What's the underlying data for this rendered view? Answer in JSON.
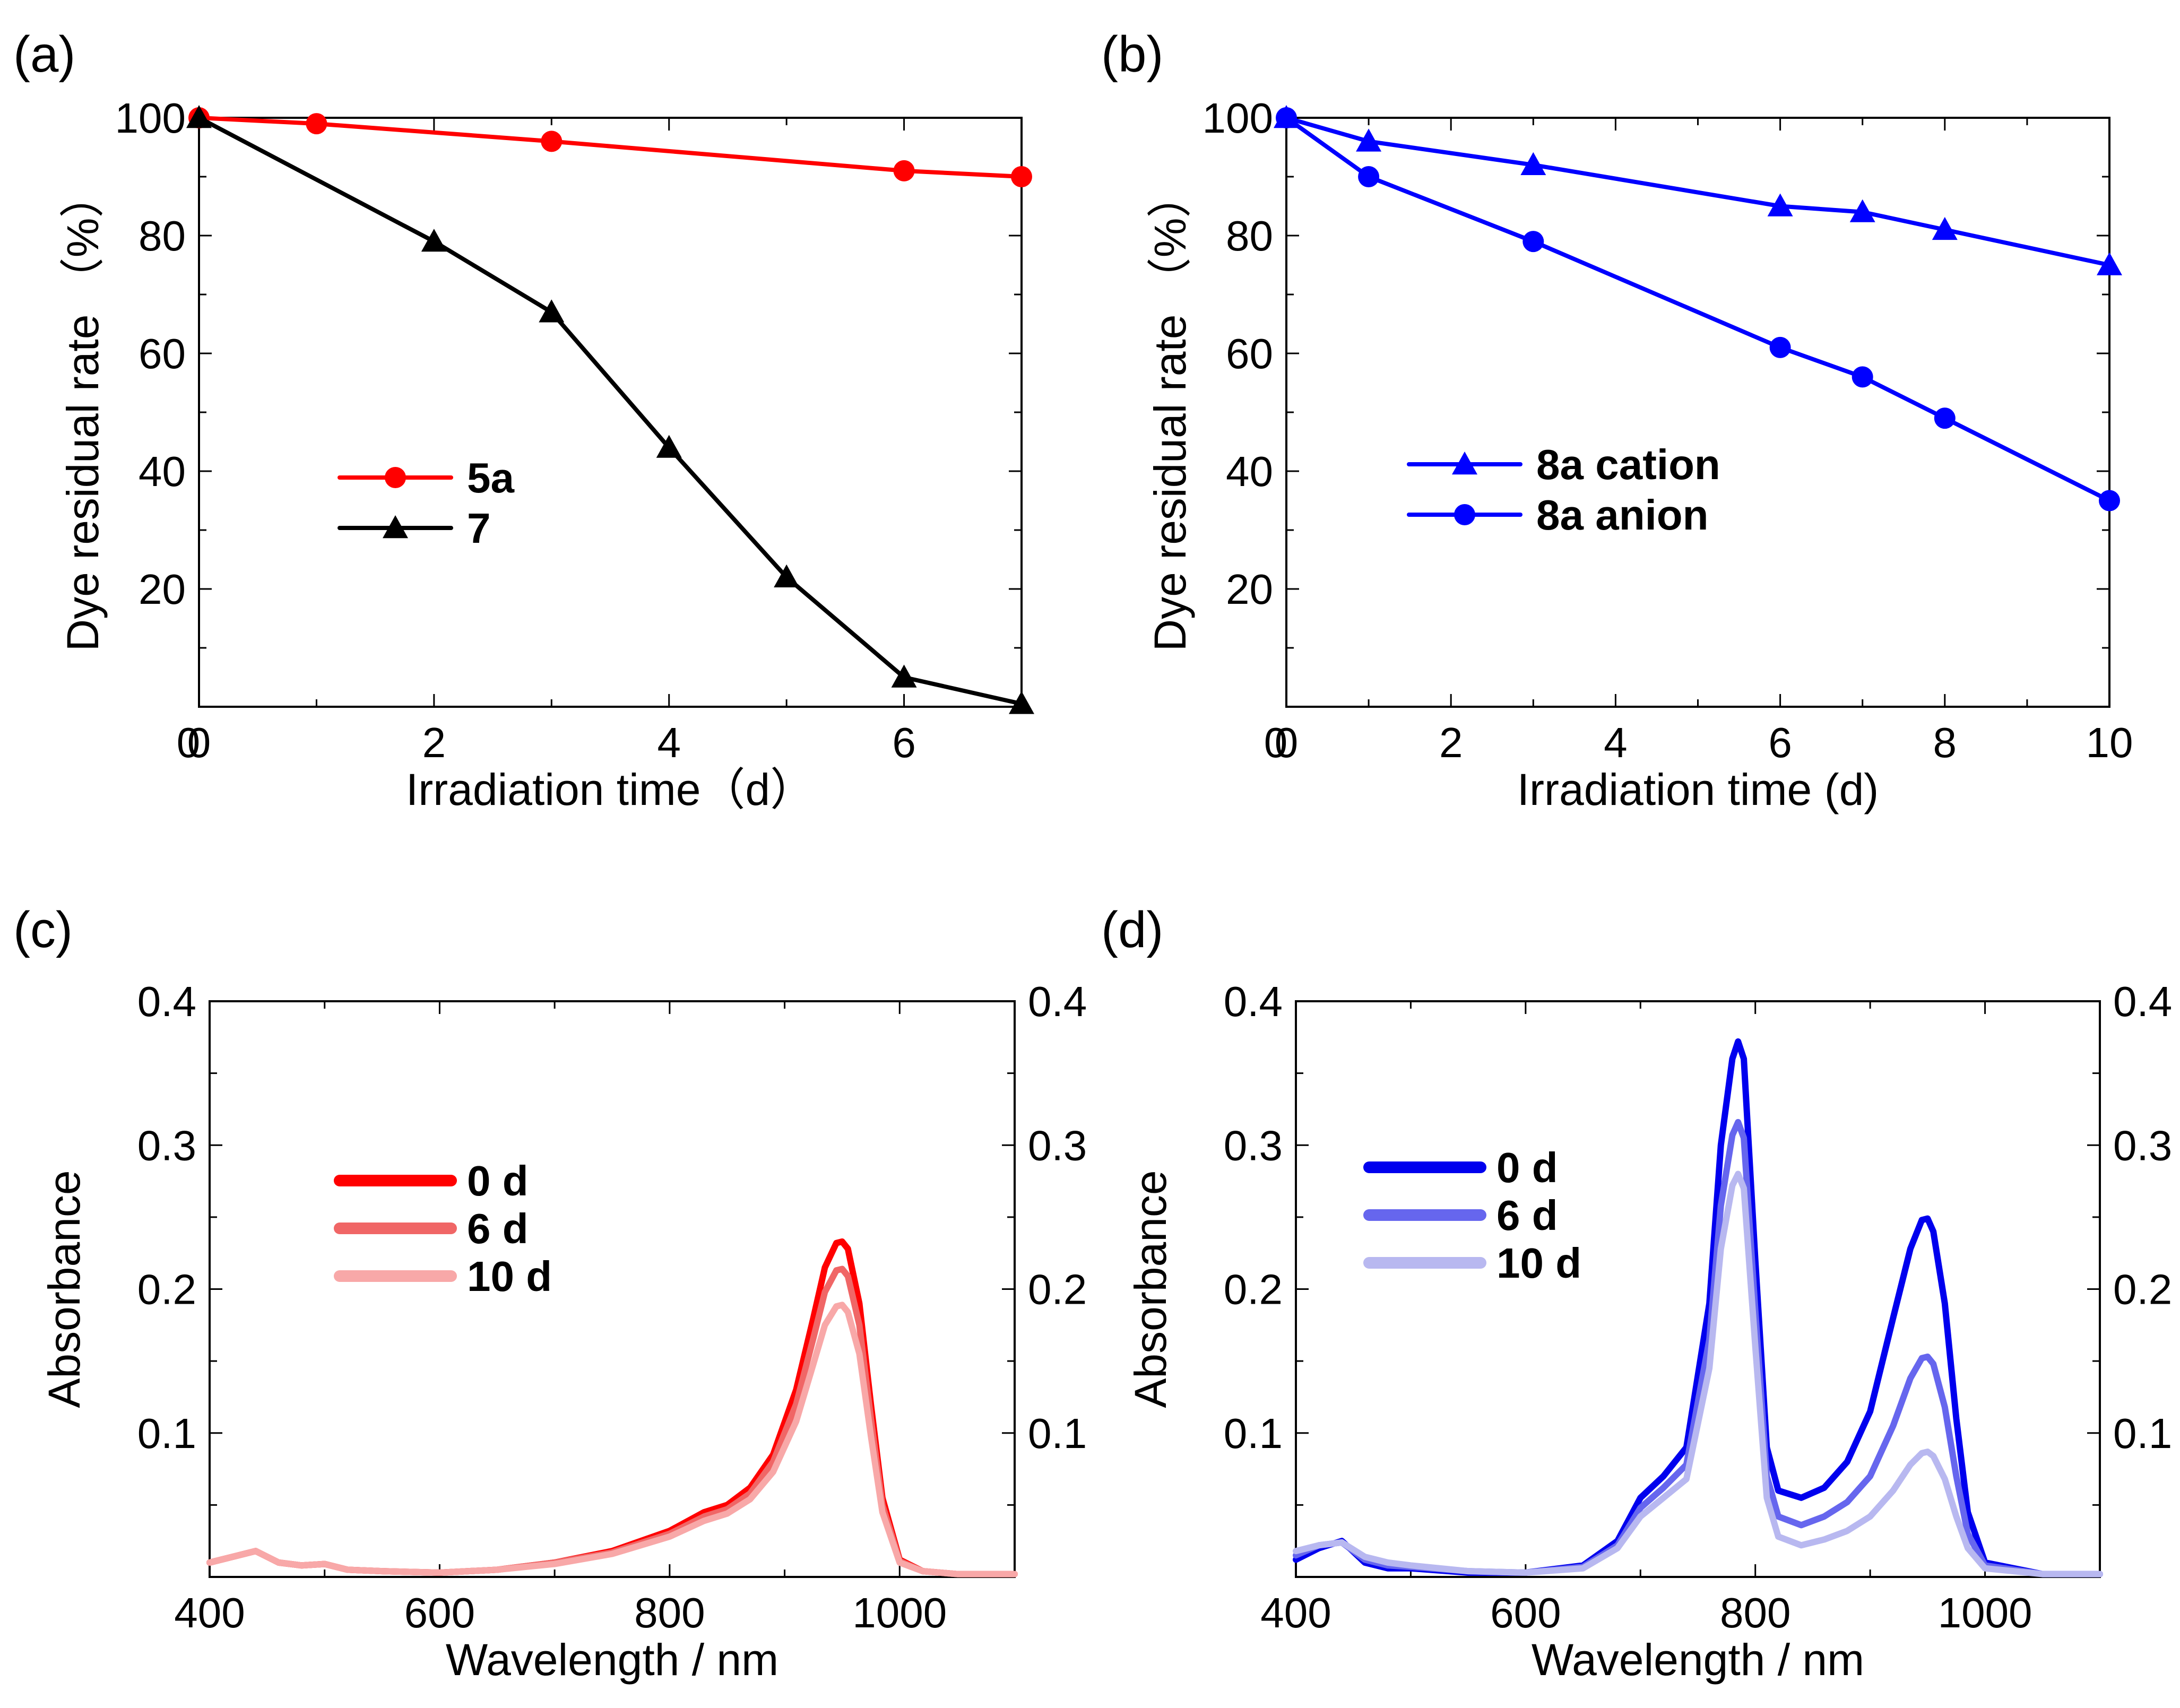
{
  "chart_data": [
    {
      "panel_label": "(a)",
      "type": "line",
      "xlabel": "Irradiation time（d）",
      "ylabel": "Dye residual rate （%）",
      "xlim": [
        0,
        7
      ],
      "ylim": [
        0,
        100
      ],
      "xticks": [
        0,
        2,
        4,
        6
      ],
      "yticks": [
        20,
        40,
        60,
        80,
        100
      ],
      "legend_position": "middle-left",
      "series": [
        {
          "name": "5a",
          "marker": "circle",
          "color": "#ff0000",
          "x": [
            0,
            1,
            3,
            6,
            7
          ],
          "y": [
            100,
            99,
            96,
            91,
            90
          ]
        },
        {
          "name": "7",
          "marker": "triangle",
          "color": "#000000",
          "x": [
            0,
            2,
            3,
            4,
            5,
            6,
            7
          ],
          "y": [
            100,
            79,
            67,
            44,
            22,
            5,
            0.5
          ]
        }
      ]
    },
    {
      "panel_label": "(b)",
      "type": "line",
      "xlabel": "Irradiation time (d)",
      "ylabel": "Dye residual rate （%）",
      "xlim": [
        0,
        10
      ],
      "ylim": [
        0,
        100
      ],
      "xticks": [
        0,
        2,
        4,
        6,
        8,
        10
      ],
      "yticks": [
        20,
        40,
        60,
        80,
        100
      ],
      "legend_position": "middle-left",
      "series": [
        {
          "name": "8a cation",
          "marker": "triangle",
          "color": "#0000ff",
          "x": [
            0,
            1,
            3,
            6,
            7,
            8,
            10
          ],
          "y": [
            100,
            96,
            92,
            85,
            84,
            81,
            75
          ]
        },
        {
          "name": "8a anion",
          "marker": "circle",
          "color": "#0000ff",
          "x": [
            0,
            1,
            3,
            6,
            7,
            8,
            10
          ],
          "y": [
            100,
            90,
            79,
            61,
            56,
            49,
            35
          ]
        }
      ]
    },
    {
      "panel_label": "(c)",
      "type": "line",
      "xlabel": "Wavelength / nm",
      "ylabel": "Absorbance",
      "xlim": [
        400,
        1100
      ],
      "ylim": [
        0,
        0.4
      ],
      "xticks": [
        400,
        600,
        800,
        1000
      ],
      "yticks": [
        0.1,
        0.2,
        0.3,
        0.4
      ],
      "right_axis": true,
      "legend_position": "upper-left",
      "series": [
        {
          "name": "0 d",
          "color": "#ff0000",
          "x": [
            400,
            420,
            440,
            460,
            480,
            500,
            520,
            550,
            600,
            650,
            700,
            750,
            800,
            830,
            850,
            870,
            890,
            910,
            925,
            935,
            945,
            950,
            955,
            965,
            975,
            985,
            1000,
            1020,
            1050,
            1100
          ],
          "y": [
            0.01,
            0.014,
            0.018,
            0.01,
            0.008,
            0.009,
            0.005,
            0.004,
            0.003,
            0.005,
            0.01,
            0.018,
            0.032,
            0.045,
            0.05,
            0.062,
            0.085,
            0.13,
            0.18,
            0.215,
            0.232,
            0.233,
            0.228,
            0.19,
            0.12,
            0.055,
            0.012,
            0.004,
            0.002,
            0.002
          ]
        },
        {
          "name": "6 d",
          "color": "#f06666",
          "x": [
            400,
            420,
            440,
            460,
            480,
            500,
            520,
            550,
            600,
            650,
            700,
            750,
            800,
            830,
            850,
            870,
            890,
            910,
            925,
            935,
            945,
            950,
            955,
            965,
            975,
            985,
            1000,
            1020,
            1050,
            1100
          ],
          "y": [
            0.01,
            0.014,
            0.018,
            0.01,
            0.008,
            0.009,
            0.005,
            0.004,
            0.003,
            0.005,
            0.01,
            0.017,
            0.03,
            0.042,
            0.047,
            0.058,
            0.08,
            0.12,
            0.166,
            0.198,
            0.213,
            0.214,
            0.209,
            0.175,
            0.11,
            0.05,
            0.011,
            0.004,
            0.002,
            0.002
          ]
        },
        {
          "name": "10 d",
          "color": "#f8a8a8",
          "x": [
            400,
            420,
            440,
            460,
            480,
            500,
            520,
            550,
            600,
            650,
            700,
            750,
            800,
            830,
            850,
            870,
            890,
            910,
            925,
            935,
            945,
            950,
            955,
            965,
            975,
            985,
            1000,
            1020,
            1050,
            1100
          ],
          "y": [
            0.01,
            0.014,
            0.018,
            0.01,
            0.008,
            0.009,
            0.005,
            0.004,
            0.003,
            0.005,
            0.009,
            0.016,
            0.028,
            0.039,
            0.044,
            0.054,
            0.073,
            0.108,
            0.148,
            0.175,
            0.188,
            0.189,
            0.184,
            0.155,
            0.098,
            0.045,
            0.01,
            0.004,
            0.002,
            0.002
          ]
        }
      ]
    },
    {
      "panel_label": "(d)",
      "type": "line",
      "xlabel": "Wavelength / nm",
      "ylabel": "Absorbance",
      "xlim": [
        400,
        1100
      ],
      "ylim": [
        0,
        0.4
      ],
      "xticks": [
        400,
        600,
        800,
        1000
      ],
      "yticks": [
        0.1,
        0.2,
        0.3,
        0.4
      ],
      "right_axis": true,
      "legend_position": "upper-left",
      "series": [
        {
          "name": "0 d",
          "color": "#0000ee",
          "x": [
            400,
            420,
            440,
            460,
            480,
            500,
            550,
            600,
            650,
            680,
            700,
            720,
            740,
            760,
            770,
            780,
            785,
            790,
            800,
            810,
            820,
            840,
            860,
            880,
            900,
            920,
            935,
            945,
            950,
            955,
            965,
            975,
            985,
            1000,
            1050,
            1100
          ],
          "y": [
            0.012,
            0.02,
            0.025,
            0.01,
            0.006,
            0.006,
            0.003,
            0.003,
            0.008,
            0.025,
            0.055,
            0.07,
            0.09,
            0.19,
            0.3,
            0.36,
            0.372,
            0.36,
            0.22,
            0.09,
            0.06,
            0.055,
            0.062,
            0.08,
            0.115,
            0.18,
            0.228,
            0.248,
            0.249,
            0.24,
            0.19,
            0.11,
            0.045,
            0.01,
            0.002,
            0.002
          ]
        },
        {
          "name": "6 d",
          "color": "#6666ee",
          "x": [
            400,
            420,
            440,
            460,
            480,
            500,
            550,
            600,
            650,
            680,
            700,
            720,
            740,
            760,
            770,
            780,
            785,
            790,
            800,
            810,
            820,
            840,
            860,
            880,
            900,
            920,
            935,
            945,
            950,
            955,
            965,
            975,
            985,
            1000,
            1050,
            1100
          ],
          "y": [
            0.015,
            0.022,
            0.024,
            0.012,
            0.008,
            0.007,
            0.004,
            0.003,
            0.007,
            0.022,
            0.048,
            0.062,
            0.078,
            0.165,
            0.258,
            0.307,
            0.316,
            0.305,
            0.185,
            0.07,
            0.042,
            0.036,
            0.042,
            0.052,
            0.07,
            0.105,
            0.138,
            0.152,
            0.153,
            0.148,
            0.118,
            0.07,
            0.03,
            0.008,
            0.002,
            0.002
          ]
        },
        {
          "name": "10 d",
          "color": "#b8b8f0",
          "x": [
            400,
            420,
            440,
            460,
            480,
            500,
            550,
            600,
            650,
            680,
            700,
            720,
            740,
            760,
            770,
            780,
            785,
            790,
            800,
            810,
            820,
            840,
            860,
            880,
            900,
            920,
            935,
            945,
            950,
            955,
            965,
            975,
            985,
            1000,
            1050,
            1100
          ],
          "y": [
            0.018,
            0.022,
            0.024,
            0.014,
            0.01,
            0.008,
            0.004,
            0.003,
            0.006,
            0.02,
            0.042,
            0.055,
            0.068,
            0.145,
            0.228,
            0.272,
            0.28,
            0.27,
            0.16,
            0.055,
            0.028,
            0.022,
            0.026,
            0.032,
            0.042,
            0.06,
            0.078,
            0.086,
            0.087,
            0.084,
            0.068,
            0.042,
            0.02,
            0.006,
            0.002,
            0.002
          ]
        }
      ]
    }
  ]
}
